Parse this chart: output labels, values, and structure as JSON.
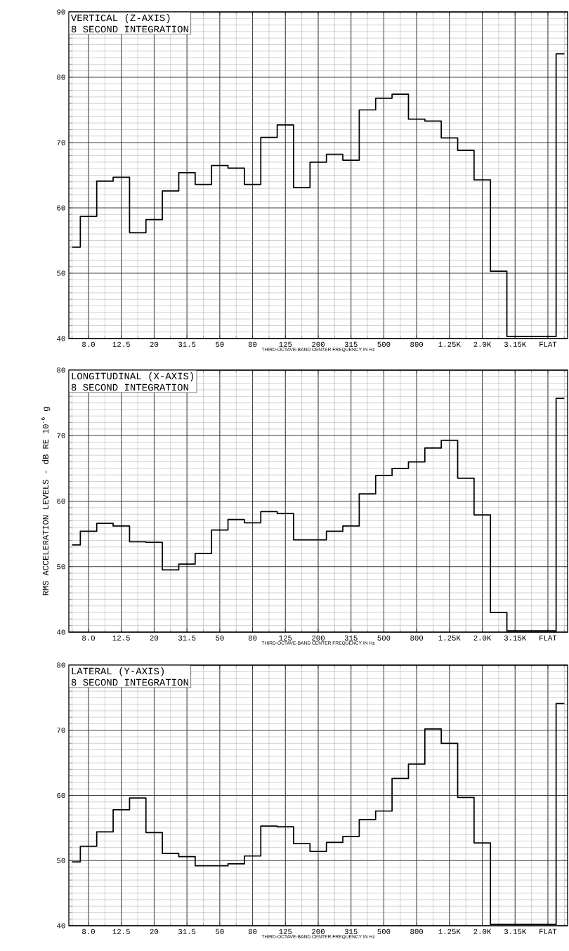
{
  "chart_data": [
    {
      "type": "step",
      "title": "VERTICAL (Z-AXIS)",
      "subtitle": "8 SECOND INTEGRATION",
      "xlabel": "THIRD-OCTAVE-BAND CENTER FREQUENCY IN Hz",
      "categories": [
        null,
        "8.0",
        null,
        "12.5",
        null,
        "20",
        null,
        "31.5",
        null,
        "50",
        null,
        "80",
        null,
        "125",
        null,
        "200",
        null,
        "315",
        null,
        "500",
        null,
        "800",
        null,
        "1.25K",
        null,
        "2.0K",
        null,
        "3.15K",
        null,
        "FLAT",
        null
      ],
      "series": [
        {
          "color": "#000000",
          "values": [
            54.0,
            58.7,
            64.1,
            64.7,
            56.2,
            58.2,
            62.6,
            65.4,
            63.6,
            66.5,
            66.1,
            63.6,
            70.8,
            72.7,
            63.1,
            67.0,
            68.2,
            67.3,
            75.0,
            76.8,
            77.4,
            73.6,
            73.3,
            70.7,
            68.8,
            64.3,
            50.3,
            40.3,
            40.3,
            40.3,
            83.6
          ]
        }
      ],
      "ylim": [
        40,
        90
      ],
      "yticks": [
        40,
        50,
        60,
        70,
        80,
        90
      ],
      "grid": true
    },
    {
      "type": "step",
      "title": "LONGITUDINAL (X-AXIS)",
      "subtitle": "8 SECOND INTEGRATION",
      "xlabel": "THIRD-OCTAVE-BAND CENTER FREQUENCY IN Hz",
      "ylabel": "RMS ACCELERATION LEVELS - dB RE 10$^{-6}$ g",
      "categories": [
        null,
        "8.0",
        null,
        "12.5",
        null,
        "20",
        null,
        "31.5",
        null,
        "50",
        null,
        "80",
        null,
        "125",
        null,
        "200",
        null,
        "315",
        null,
        "500",
        null,
        "800",
        null,
        "1.25K",
        null,
        "2.0K",
        null,
        "3.15K",
        null,
        "FLAT",
        null
      ],
      "series": [
        {
          "color": "#000000",
          "values": [
            53.3,
            55.4,
            56.6,
            56.2,
            53.8,
            53.7,
            49.5,
            50.4,
            52.0,
            55.6,
            57.2,
            56.7,
            58.4,
            58.1,
            54.1,
            54.1,
            55.4,
            56.2,
            61.1,
            63.9,
            65.0,
            66.0,
            68.1,
            69.3,
            63.5,
            57.9,
            43.0,
            40.2,
            40.2,
            40.2,
            75.7
          ]
        }
      ],
      "ylim": [
        40,
        80
      ],
      "yticks": [
        40,
        50,
        60,
        70,
        80
      ],
      "grid": true
    },
    {
      "type": "step",
      "title": "LATERAL (Y-AXIS)",
      "subtitle": "8 SECOND INTEGRATION",
      "xlabel": "THIRD-OCTAVE-BAND CENTER FREQUENCY IN Hz",
      "categories": [
        null,
        "8.0",
        null,
        "12.5",
        null,
        "20",
        null,
        "31.5",
        null,
        "50",
        null,
        "80",
        null,
        "125",
        null,
        "200",
        null,
        "315",
        null,
        "500",
        null,
        "800",
        null,
        "1.25K",
        null,
        "2.0K",
        null,
        "3.15K",
        null,
        "FLAT",
        null
      ],
      "series": [
        {
          "color": "#000000",
          "values": [
            49.8,
            52.2,
            54.4,
            57.8,
            59.6,
            54.3,
            51.1,
            50.6,
            49.2,
            49.2,
            49.5,
            50.7,
            55.3,
            55.2,
            52.6,
            51.4,
            52.8,
            53.7,
            56.3,
            57.6,
            62.6,
            64.8,
            70.2,
            68.0,
            59.7,
            52.7,
            40.2,
            40.2,
            40.2,
            40.2,
            74.1
          ]
        }
      ],
      "ylim": [
        40,
        80
      ],
      "yticks": [
        40,
        50,
        60,
        70,
        80
      ],
      "grid": true
    }
  ]
}
